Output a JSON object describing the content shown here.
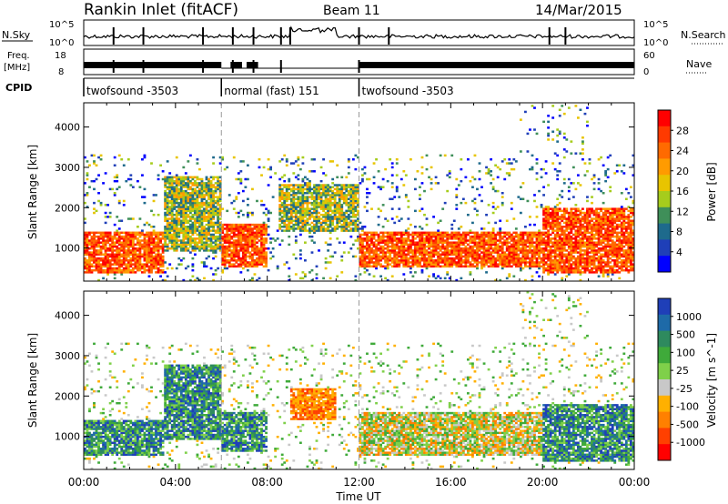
{
  "header": {
    "station": "Rankin Inlet (fitACF)",
    "beam": "Beam 11",
    "date": "14/Mar/2015"
  },
  "small_panels": {
    "nsky_label": "N.Sky",
    "nsearch_label": "N.Search",
    "nsky_ticks": [
      "10^5",
      "10^0"
    ],
    "nsearch_ticks": [
      "10^5",
      "10^0"
    ],
    "freq_label": "Freq.",
    "freq_unit": "[MHz]",
    "freq_ticks": [
      "18",
      "8"
    ],
    "nave_label": "Nave",
    "nave_ticks": [
      "60",
      "0"
    ],
    "cpid_label": "CPID",
    "cpid_segments": [
      {
        "label": "twofsound -3503",
        "start_hr": 0,
        "end_hr": 6.0
      },
      {
        "label": "normal (fast) 151",
        "start_hr": 6.0,
        "end_hr": 12.0
      },
      {
        "label": "twofsound -3503",
        "start_hr": 12.0,
        "end_hr": 24
      }
    ]
  },
  "chart_data": [
    {
      "type": "heatmap",
      "ylabel": "Slant Range [km]",
      "xlabel": "Time UT",
      "xlim": [
        0,
        24
      ],
      "ylim": [
        180,
        4600
      ],
      "x_ticks": [
        "00:00",
        "04:00",
        "08:00",
        "12:00",
        "16:00",
        "20:00",
        "00:00"
      ],
      "y_ticks": [
        1000,
        2000,
        3000,
        4000
      ],
      "colorbar": {
        "label": "Power [dB]",
        "ticks": [
          "28",
          "24",
          "20",
          "16",
          "12",
          "8",
          "4"
        ],
        "colors": [
          "#ff0000",
          "#ff3a00",
          "#ff6a00",
          "#ff9b00",
          "#e8c400",
          "#a6cc1c",
          "#3f8f59",
          "#1e6a8c",
          "#1f3fb8",
          "#0000ff"
        ]
      },
      "approx_echo_regions_hr_km": [
        {
          "t0": 0,
          "t1": 3.5,
          "r0": 400,
          "r1": 1400,
          "level": "high"
        },
        {
          "t0": 3.5,
          "t1": 6.0,
          "r0": 900,
          "r1": 2800,
          "level": "mid"
        },
        {
          "t0": 6.0,
          "t1": 8.0,
          "r0": 500,
          "r1": 1600,
          "level": "high"
        },
        {
          "t0": 8.5,
          "t1": 12.0,
          "r0": 1400,
          "r1": 2600,
          "level": "mid"
        },
        {
          "t0": 12.0,
          "t1": 20.0,
          "r0": 500,
          "r1": 1400,
          "level": "high"
        },
        {
          "t0": 20.0,
          "t1": 24.0,
          "r0": 400,
          "r1": 2000,
          "level": "high"
        }
      ]
    },
    {
      "type": "heatmap",
      "ylabel": "Slant Range [km]",
      "xlabel": "Time UT",
      "xlim": [
        0,
        24
      ],
      "ylim": [
        180,
        4600
      ],
      "x_ticks": [
        "00:00",
        "04:00",
        "08:00",
        "12:00",
        "16:00",
        "20:00",
        "00:00"
      ],
      "y_ticks": [
        1000,
        2000,
        3000,
        4000
      ],
      "colorbar": {
        "label": "Velocity [m s^-1]",
        "ticks": [
          "1000",
          "500",
          "100",
          "25",
          "-25",
          "-100",
          "-500",
          "-1000"
        ],
        "colors": [
          "#1f3fb8",
          "#1e6aa8",
          "#2e8a5e",
          "#3faa3a",
          "#7fd04a",
          "#c8c8c8",
          "#ffb000",
          "#ff8000",
          "#ff4000",
          "#ff0000"
        ]
      },
      "approx_echo_regions_hr_km": [
        {
          "t0": 0,
          "t1": 3.5,
          "r0": 500,
          "r1": 1400,
          "level": "positive"
        },
        {
          "t0": 3.5,
          "t1": 6.0,
          "r0": 900,
          "r1": 2800,
          "level": "positive"
        },
        {
          "t0": 6.0,
          "t1": 8.0,
          "r0": 600,
          "r1": 1600,
          "level": "positive"
        },
        {
          "t0": 9.0,
          "t1": 11.0,
          "r0": 1400,
          "r1": 2200,
          "level": "negative"
        },
        {
          "t0": 12.0,
          "t1": 20.0,
          "r0": 500,
          "r1": 1600,
          "level": "mixed"
        },
        {
          "t0": 20.0,
          "t1": 24.0,
          "r0": 400,
          "r1": 1800,
          "level": "positive"
        }
      ]
    }
  ]
}
